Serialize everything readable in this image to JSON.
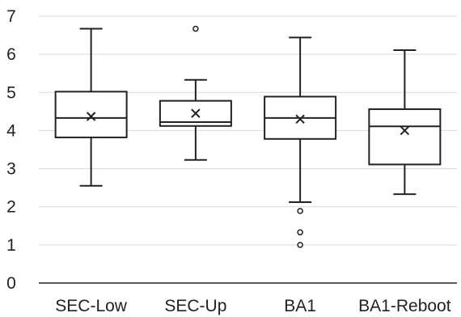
{
  "chart_data": {
    "type": "boxplot",
    "title": "",
    "xlabel": "",
    "ylabel": "",
    "ylim": [
      0,
      7
    ],
    "yticks": [
      "0",
      "1",
      "2",
      "3",
      "4",
      "5",
      "6",
      "7"
    ],
    "grid": "horizontal",
    "legend": "none",
    "categories": [
      "SEC-Low",
      "SEC-Up",
      "BA1",
      "BA1-Reboot"
    ],
    "series": [
      {
        "min": 2.55,
        "q1": 3.82,
        "median": 4.33,
        "q3": 5.02,
        "max": 6.67,
        "mean": 4.37,
        "outliers": []
      },
      {
        "min": 3.23,
        "q1": 4.12,
        "median": 4.22,
        "q3": 4.78,
        "max": 5.33,
        "mean": 4.45,
        "outliers": [
          6.67
        ]
      },
      {
        "min": 2.12,
        "q1": 3.78,
        "median": 4.33,
        "q3": 4.89,
        "max": 6.44,
        "mean": 4.3,
        "outliers": [
          1.89,
          1.33,
          1.0
        ]
      },
      {
        "min": 2.33,
        "q1": 3.11,
        "median": 4.11,
        "q3": 4.56,
        "max": 6.11,
        "mean": 4.0,
        "outliers": []
      }
    ],
    "colors": {
      "box_stroke": "#222222",
      "grid": "#d9d9d9",
      "axis": "#222222"
    }
  }
}
